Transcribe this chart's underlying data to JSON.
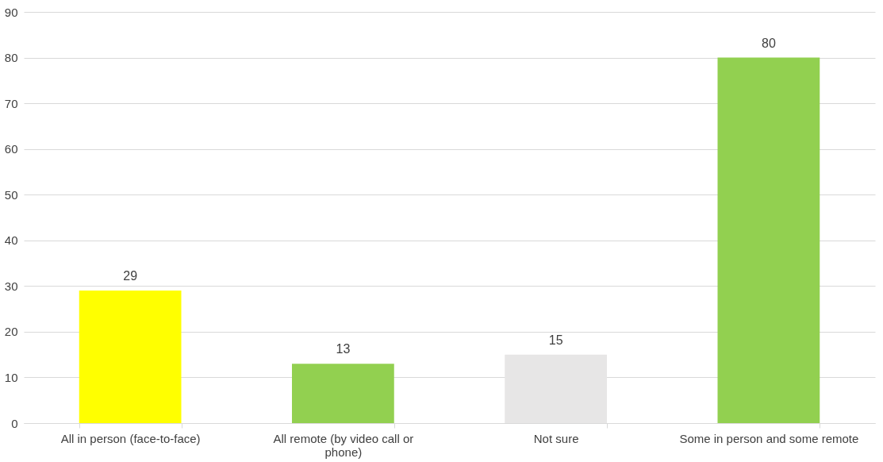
{
  "chart_data": {
    "type": "bar",
    "categories": [
      "All in person (face-to-face)",
      "All remote (by video call or phone)",
      "Not sure",
      "Some in person and some remote"
    ],
    "values": [
      29,
      13,
      15,
      80
    ],
    "colors": [
      "#ffff00",
      "#92d050",
      "#e7e6e6",
      "#92d050"
    ],
    "ylim": [
      0,
      90
    ],
    "yticks": [
      0,
      10,
      20,
      30,
      40,
      50,
      60,
      70,
      80,
      90
    ],
    "grid": "y",
    "data_labels": true,
    "legend": false
  }
}
